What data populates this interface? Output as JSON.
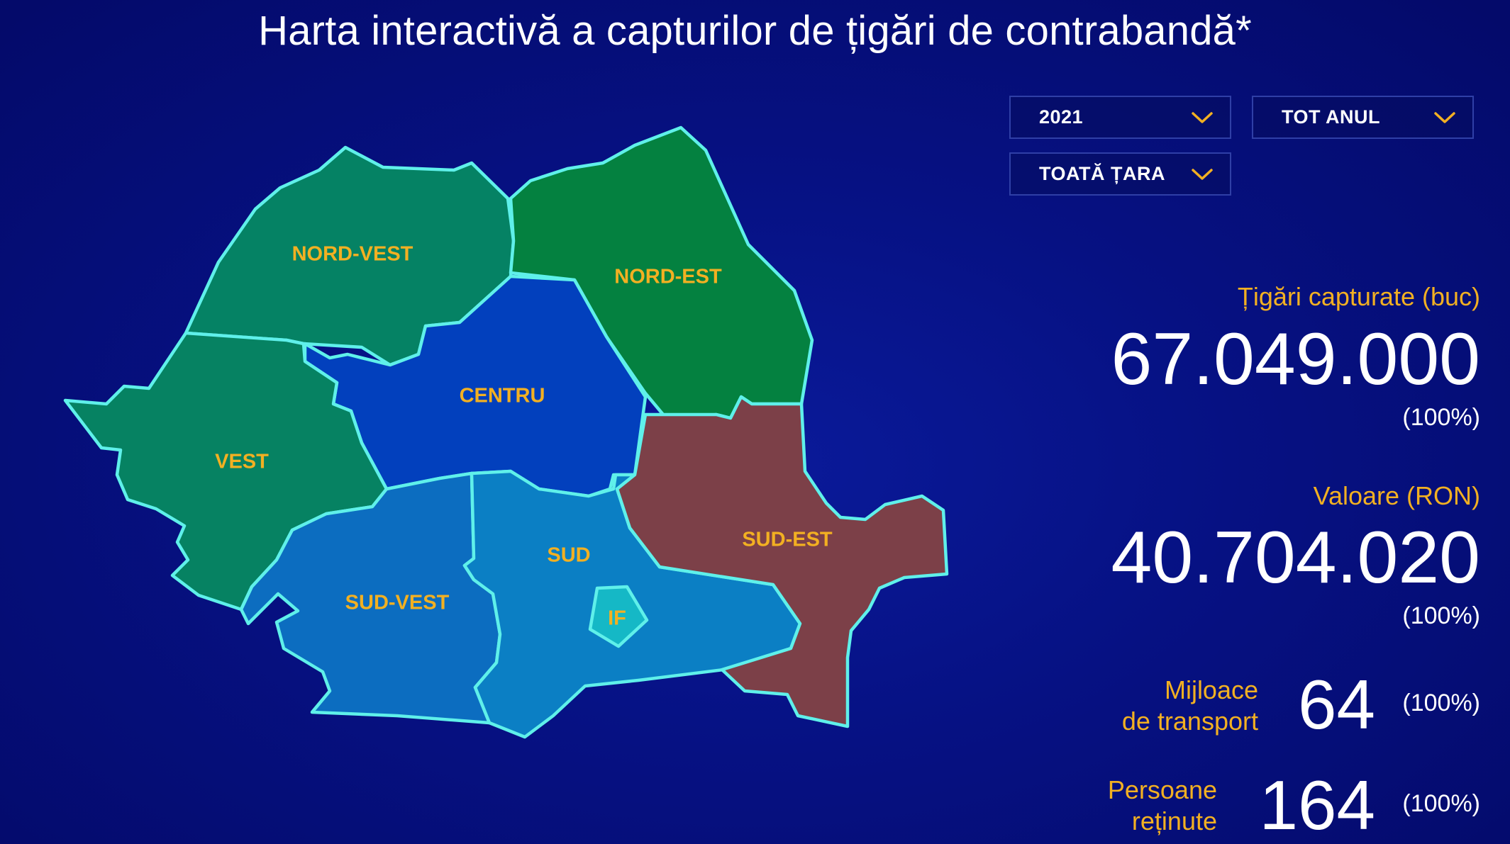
{
  "page": {
    "title": "Harta interactivă a capturilor de țigări de contrabandă*"
  },
  "filters": {
    "year": "2021",
    "period": "TOT ANUL",
    "area": "TOATĂ ȚARA"
  },
  "regions": [
    {
      "key": "nord-vest",
      "label": "NORD-VEST",
      "color": "#058264"
    },
    {
      "key": "nord-est",
      "label": "NORD-EST",
      "color": "#048140"
    },
    {
      "key": "centru",
      "label": "CENTRU",
      "color": "#0240bd"
    },
    {
      "key": "vest",
      "label": "VEST",
      "color": "#068262"
    },
    {
      "key": "sud-vest",
      "label": "SUD-VEST",
      "color": "#0c6dc0"
    },
    {
      "key": "sud",
      "label": "SUD",
      "color": "#0b7fc4"
    },
    {
      "key": "sud-est",
      "label": "SUD-EST",
      "color": "#7c4048"
    },
    {
      "key": "if",
      "label": "IF",
      "color": "#15b8c6"
    }
  ],
  "stats": {
    "cigarettes": {
      "label": "Țigări capturate (buc)",
      "value": "67.049.000",
      "percent": "(100%)"
    },
    "value_ron": {
      "label": "Valoare (RON)",
      "value": "40.704.020",
      "percent": "(100%)"
    },
    "vehicles": {
      "label_line1": "Mijloace",
      "label_line2": "de transport",
      "value": "64",
      "percent": "(100%)"
    },
    "persons": {
      "label_line1": "Persoane",
      "label_line2": "reținute",
      "value": "164",
      "percent": "(100%)"
    }
  },
  "colors": {
    "accent": "#f2b022",
    "border": "#5ff0ea",
    "background": "#061183"
  }
}
